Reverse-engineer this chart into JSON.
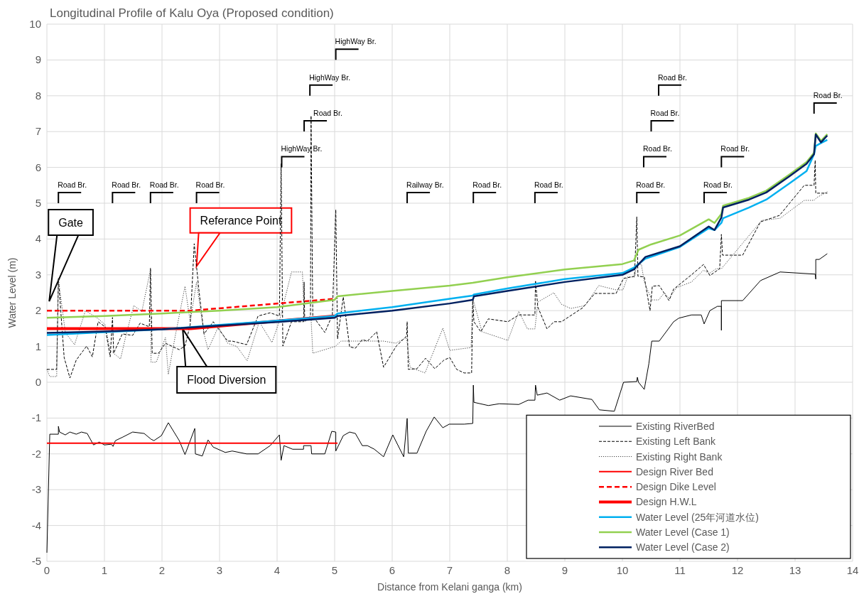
{
  "chart_data": {
    "type": "line",
    "title": "Longitudinal Profile of Kalu Oya (Proposed condition)",
    "xlabel": "Distance from Kelani ganga (km)",
    "ylabel": "Water Level (m)",
    "xlim": [
      0,
      14
    ],
    "ylim": [
      -5,
      10
    ],
    "xticks": [
      0,
      1,
      2,
      3,
      4,
      5,
      6,
      7,
      8,
      9,
      10,
      11,
      12,
      13,
      14
    ],
    "yticks": [
      -5,
      -4,
      -3,
      -2,
      -1,
      0,
      1,
      2,
      3,
      4,
      5,
      6,
      7,
      8,
      9,
      10
    ],
    "grid": true,
    "legend": "bottom right",
    "series": [
      {
        "name": "Existing RiverBed",
        "color": "#000000",
        "line_style": "solid",
        "x": [
          0,
          0.05,
          0.2,
          0.2,
          0.22,
          0.32,
          0.4,
          0.51,
          0.6,
          0.7,
          0.81,
          0.91,
          1.0,
          1.12,
          1.15,
          1.19,
          1.32,
          1.49,
          1.69,
          1.81,
          1.86,
          1.99,
          2.11,
          2.3,
          2.4,
          2.57,
          2.58,
          2.7,
          2.8,
          2.89,
          3.1,
          3.22,
          3.47,
          3.67,
          3.88,
          4.04,
          4.07,
          4.12,
          4.27,
          4.46,
          4.46,
          4.59,
          4.6,
          4.83,
          4.95,
          5.02,
          5.02,
          5.15,
          5.26,
          5.36,
          5.48,
          5.57,
          5.69,
          5.85,
          6.01,
          6.2,
          6.26,
          6.28,
          6.43,
          6.59,
          6.73,
          6.88,
          6.99,
          7.25,
          7.4,
          7.41,
          7.42,
          7.67,
          7.86,
          8.2,
          8.36,
          8.48,
          8.49,
          8.52,
          8.69,
          8.91,
          9.1,
          9.47,
          9.6,
          9.86,
          10.02,
          10.25,
          10.26,
          10.28,
          10.38,
          10.46,
          10.51,
          10.64,
          10.89,
          10.98,
          11.2,
          11.37,
          11.42,
          11.52,
          11.65,
          11.72,
          11.72,
          11.72,
          12.09,
          12.4,
          12.74,
          13.35,
          13.36,
          13.36,
          13.42,
          13.56
        ],
        "values": [
          -4.76,
          -1.45,
          -1.45,
          -1.23,
          -1.39,
          -1.47,
          -1.39,
          -1.45,
          -1.39,
          -1.43,
          -1.75,
          -1.67,
          -1.75,
          -1.73,
          -1.79,
          -1.63,
          -1.53,
          -1.39,
          -1.43,
          -1.59,
          -1.63,
          -1.49,
          -1.13,
          -1.63,
          -2.02,
          -1.29,
          -2.0,
          -2.06,
          -1.61,
          -1.81,
          -1.96,
          -1.92,
          -2.0,
          -2.0,
          -1.77,
          -1.47,
          -2.18,
          -1.77,
          -1.87,
          -1.87,
          -1.77,
          -1.77,
          -2.0,
          -2.0,
          -1.37,
          -1.39,
          -1.92,
          -1.49,
          -1.39,
          -1.43,
          -1.77,
          -1.77,
          -1.87,
          -2.08,
          -1.47,
          -2.08,
          -1.01,
          -1.98,
          -1.98,
          -1.37,
          -0.97,
          -1.27,
          -1.17,
          -1.17,
          -1.15,
          -0.08,
          -0.56,
          -0.65,
          -0.6,
          -0.62,
          -0.5,
          -0.5,
          -0.08,
          -0.36,
          -0.3,
          -0.5,
          -0.38,
          -0.48,
          -0.77,
          -0.81,
          0.0,
          0.02,
          0.14,
          0.0,
          -0.2,
          0.52,
          1.15,
          1.15,
          1.69,
          1.79,
          1.88,
          1.88,
          1.63,
          2.0,
          2.12,
          2.12,
          1.45,
          2.28,
          2.28,
          2.84,
          3.08,
          3.02,
          2.88,
          3.43,
          3.43,
          3.59
        ]
      },
      {
        "name": "Existing Left Bank",
        "color": "#000000",
        "line_style": "dashed",
        "x": [
          0,
          0.17,
          0.2,
          0.3,
          0.4,
          0.51,
          0.69,
          0.79,
          0.89,
          1.01,
          1.1,
          1.14,
          1.16,
          1.31,
          1.49,
          1.62,
          1.78,
          1.8,
          1.83,
          1.94,
          2.06,
          2.3,
          2.4,
          2.49,
          2.56,
          2.64,
          2.73,
          2.89,
          3.14,
          3.22,
          3.47,
          3.67,
          3.88,
          4.04,
          4.07,
          4.1,
          4.25,
          4.46,
          4.47,
          4.48,
          4.58,
          4.59,
          4.62,
          4.83,
          4.96,
          5.02,
          5.05,
          5.15,
          5.26,
          5.36,
          5.48,
          5.57,
          5.73,
          5.85,
          6.07,
          6.25,
          6.26,
          6.28,
          6.43,
          6.58,
          6.74,
          6.9,
          7.0,
          7.12,
          7.25,
          7.38,
          7.4,
          7.42,
          7.54,
          7.67,
          8.01,
          8.2,
          8.48,
          8.49,
          8.53,
          8.69,
          8.81,
          8.94,
          9.31,
          9.52,
          9.89,
          10.02,
          10.21,
          10.25,
          10.27,
          10.38,
          10.48,
          10.52,
          10.64,
          10.81,
          10.89,
          11.2,
          11.41,
          11.52,
          11.69,
          11.72,
          11.74,
          12.09,
          12.4,
          12.73,
          13.16,
          13.33,
          13.35,
          13.36,
          13.56
        ],
        "values": [
          0.36,
          0.36,
          2.9,
          0.69,
          0.12,
          0.62,
          1.01,
          0.71,
          1.69,
          1.55,
          0.71,
          1.81,
          0.81,
          1.35,
          1.31,
          1.65,
          1.55,
          3.19,
          0.81,
          0.81,
          1.09,
          0.91,
          1.01,
          1.61,
          3.87,
          2.6,
          1.35,
          1.69,
          1.15,
          1.15,
          1.05,
          1.85,
          1.94,
          1.85,
          6.1,
          1.01,
          1.69,
          1.69,
          2.8,
          1.69,
          1.85,
          7.44,
          1.85,
          1.39,
          1.88,
          4.82,
          1.21,
          2.38,
          0.99,
          0.95,
          1.19,
          1.15,
          1.41,
          0.42,
          1.01,
          1.29,
          1.69,
          0.36,
          0.38,
          0.67,
          0.38,
          0.62,
          0.69,
          0.36,
          0.26,
          0.26,
          2.34,
          1.69,
          1.41,
          1.77,
          1.69,
          1.88,
          1.88,
          2.84,
          2.1,
          1.49,
          1.69,
          1.69,
          2.08,
          2.48,
          2.48,
          2.9,
          2.96,
          4.62,
          2.96,
          2.94,
          2.0,
          2.68,
          2.7,
          2.28,
          2.6,
          3.0,
          3.29,
          2.98,
          3.17,
          4.13,
          3.55,
          3.55,
          4.48,
          4.66,
          5.5,
          5.5,
          6.2,
          5.28,
          5.28
        ]
      },
      {
        "name": "Existing Right Bank",
        "color": "#404040",
        "line_style": "dotted",
        "x": [
          0,
          0.05,
          0.17,
          0.2,
          0.32,
          0.48,
          0.67,
          0.88,
          1.01,
          1.1,
          1.28,
          1.38,
          1.51,
          1.65,
          1.8,
          1.81,
          1.9,
          2.06,
          2.11,
          2.23,
          2.4,
          2.49,
          2.6,
          2.73,
          2.8,
          2.98,
          3.14,
          3.3,
          3.48,
          3.69,
          3.91,
          4.04,
          4.25,
          4.44,
          4.47,
          4.59,
          4.62,
          5.01,
          5.11,
          5.85,
          6.06,
          6.25,
          6.31,
          6.57,
          6.88,
          7.0,
          7.37,
          7.4,
          7.56,
          8.01,
          8.2,
          8.35,
          8.48,
          8.53,
          8.81,
          8.94,
          9.1,
          9.35,
          9.59,
          9.89,
          10.01,
          10.09,
          10.21,
          10.25,
          10.33,
          10.38,
          10.51,
          10.63,
          10.73,
          10.81,
          10.94,
          11.2,
          11.41,
          11.51,
          11.63,
          11.72,
          12.42,
          12.74,
          13.16,
          13.33,
          13.38,
          13.56
        ],
        "values": [
          0.36,
          0.16,
          0.16,
          2.88,
          1.39,
          1.05,
          2.0,
          1.79,
          1.61,
          0.89,
          0.65,
          1.35,
          2.14,
          1.98,
          3.14,
          0.56,
          0.56,
          1.25,
          0.22,
          1.29,
          2.68,
          1.69,
          2.8,
          1.35,
          0.91,
          1.55,
          1.09,
          1.0,
          0.6,
          1.69,
          1.11,
          1.71,
          3.08,
          3.08,
          1.8,
          1.8,
          0.81,
          1.0,
          1.15,
          1.15,
          1.09,
          1.25,
          0.42,
          0.26,
          1.51,
          0.89,
          0.97,
          2.34,
          1.41,
          1.17,
          1.98,
          1.49,
          1.49,
          2.24,
          2.5,
          2.18,
          2.06,
          2.14,
          2.7,
          2.58,
          2.58,
          2.94,
          2.94,
          3.29,
          3.29,
          2.8,
          2.3,
          2.3,
          2.5,
          2.34,
          2.64,
          2.8,
          3.13,
          3.04,
          3.17,
          3.17,
          4.52,
          4.58,
          5.08,
          5.08,
          5.16,
          5.32
        ]
      },
      {
        "name": "Design River Bed",
        "color": "#ff0000",
        "line_style": "solid",
        "x": [
          0,
          5.05
        ],
        "values": [
          -1.7,
          -1.7
        ]
      },
      {
        "name": "Design Dike Level",
        "color": "#ff0000",
        "line_style": "dashed",
        "x": [
          0,
          2.5,
          5.0
        ],
        "values": [
          2.0,
          2.0,
          2.33
        ]
      },
      {
        "name": "Design H.W.L",
        "color": "#ff0000",
        "line_style": "solid",
        "x": [
          0,
          2.5,
          5.0
        ],
        "values": [
          1.5,
          1.5,
          1.85
        ]
      },
      {
        "name": "Water Level (25年河道水位)",
        "color": "#00b0f0",
        "line_style": "solid",
        "x": [
          0,
          1,
          2,
          3,
          4,
          5,
          5.05,
          6,
          7,
          7.4,
          7.42,
          8,
          9,
          10,
          10.2,
          10.4,
          11,
          11.5,
          11.6,
          11.72,
          11.75,
          12.2,
          12.5,
          12.9,
          13.2,
          13.33,
          13.36,
          13.45,
          13.56
        ],
        "values": [
          1.32,
          1.4,
          1.48,
          1.6,
          1.72,
          1.85,
          1.92,
          2.1,
          2.33,
          2.42,
          2.45,
          2.62,
          2.88,
          3.05,
          3.2,
          3.45,
          3.78,
          4.3,
          4.25,
          4.45,
          4.58,
          4.88,
          5.1,
          5.55,
          5.9,
          6.37,
          6.6,
          6.68,
          6.77
        ]
      },
      {
        "name": "Water Level (Case 1)",
        "color": "#92d050",
        "line_style": "solid",
        "x": [
          0,
          1,
          2,
          2.6,
          3,
          4,
          5,
          5.05,
          6,
          7,
          7.4,
          8,
          9,
          10,
          10.2,
          10.28,
          10.5,
          11,
          11.5,
          11.6,
          11.72,
          11.75,
          12.2,
          12.5,
          12.9,
          13.2,
          13.33,
          13.36,
          13.45,
          13.56
        ],
        "values": [
          1.8,
          1.85,
          1.92,
          1.97,
          2.0,
          2.1,
          2.3,
          2.4,
          2.55,
          2.7,
          2.78,
          2.93,
          3.15,
          3.3,
          3.4,
          3.7,
          3.85,
          4.1,
          4.55,
          4.45,
          4.7,
          4.93,
          5.15,
          5.35,
          5.8,
          6.15,
          6.41,
          6.95,
          6.74,
          6.93
        ]
      },
      {
        "name": "Water Level (Case 2)",
        "color": "#002060",
        "line_style": "solid",
        "x": [
          0,
          1,
          2,
          3,
          4,
          5,
          5.05,
          6,
          7,
          7.4,
          7.42,
          8,
          9,
          10,
          10.2,
          10.4,
          11,
          11.5,
          11.6,
          11.72,
          11.75,
          12.2,
          12.5,
          12.9,
          13.2,
          13.33,
          13.36,
          13.45,
          13.56
        ],
        "values": [
          1.38,
          1.42,
          1.48,
          1.58,
          1.68,
          1.8,
          1.85,
          2.0,
          2.2,
          2.3,
          2.4,
          2.55,
          2.8,
          3.0,
          3.15,
          3.5,
          3.8,
          4.35,
          4.25,
          4.6,
          4.88,
          5.1,
          5.3,
          5.75,
          6.1,
          6.37,
          6.92,
          6.7,
          6.89
        ]
      }
    ],
    "annotations": [
      "Road Br.",
      "Road Br.",
      "Road Br.",
      "Road Br.",
      "HighWay Br.",
      "Road Br.",
      "HighWay Br.",
      "HighWay Br.",
      "Railway Br.",
      "Road Br.",
      "Road Br.",
      "Road Br.",
      "Road Br.",
      "Road Br.",
      "Road Br.",
      "Road Br.",
      "Road Br.",
      "Road Br.",
      "Gate",
      {
        "text": "Referance Point",
        "x": 2.6,
        "y": 3.24
      },
      {
        "text": "Flood Diversion",
        "x": 2.36,
        "y": 1.49
      }
    ]
  }
}
